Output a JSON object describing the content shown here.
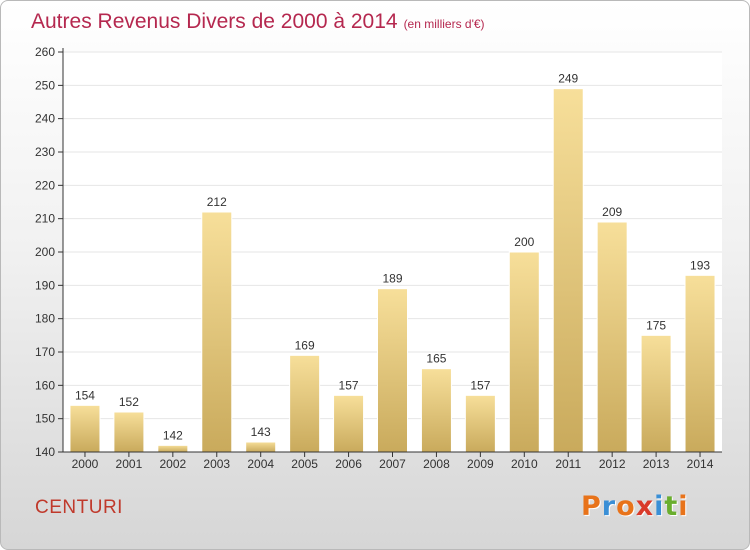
{
  "header": {
    "title": "Autres Revenus Divers de 2000 à 2014",
    "unit": "(en milliers d'€)"
  },
  "footer": {
    "commune": "CENTURI",
    "logo": [
      "P",
      "r",
      "o",
      "x",
      "i",
      "t",
      "i"
    ],
    "logo_colors": [
      "#e8731a",
      "#3a8fd6",
      "#e8731a",
      "#d93a2a",
      "#3a8fd6",
      "#6aae2e",
      "#e8731a"
    ]
  },
  "colors": {
    "title": "#b5284f",
    "bar_light": "#f7df9a",
    "bar_dark": "#c9aa5c",
    "axis": "#333333",
    "grid": "#e6e6e6"
  },
  "chart_data": {
    "type": "bar",
    "categories": [
      "2000",
      "2001",
      "2002",
      "2003",
      "2004",
      "2005",
      "2006",
      "2007",
      "2008",
      "2009",
      "2010",
      "2011",
      "2012",
      "2013",
      "2014"
    ],
    "values": [
      154,
      152,
      142,
      212,
      143,
      169,
      157,
      189,
      165,
      157,
      200,
      249,
      209,
      175,
      193
    ],
    "ylim": [
      140,
      260
    ],
    "yticks": [
      140,
      150,
      160,
      170,
      180,
      190,
      200,
      210,
      220,
      230,
      240,
      250,
      260
    ],
    "grid": true,
    "data_labels": true
  }
}
